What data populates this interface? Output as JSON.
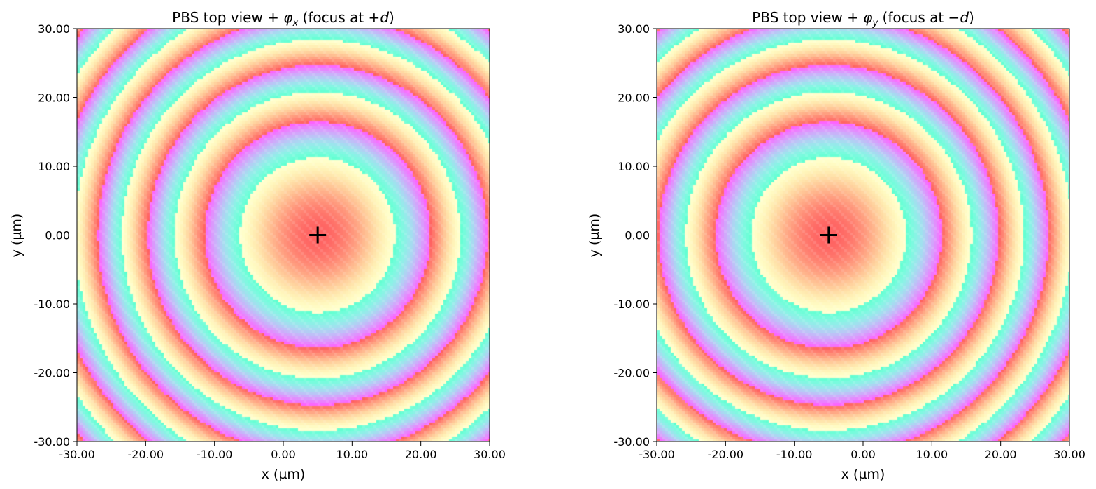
{
  "chart_data": [
    {
      "type": "heatmap",
      "title": {
        "prefix": "PBS top view + ",
        "symbol": "φ",
        "subscript": "x",
        "middle": " (focus at +",
        "var": "d",
        "suffix": ")"
      },
      "xlabel": "x (µm)",
      "ylabel": "y (µm)",
      "xlim": [
        -30,
        30
      ],
      "ylim": [
        -30,
        30
      ],
      "xticks": [
        "-30.00",
        "-20.00",
        "-10.00",
        "0.00",
        "10.00",
        "20.00",
        "30.00"
      ],
      "yticks": [
        "30.00",
        "20.00",
        "10.00",
        "0.00",
        "-10.00",
        "-20.00",
        "-30.00"
      ],
      "xtick_values": [
        -30,
        -20,
        -10,
        0,
        10,
        20,
        30
      ],
      "ytick_values": [
        30,
        20,
        10,
        0,
        -10,
        -20,
        -30
      ],
      "focus_marker": {
        "x": 5,
        "y": 0,
        "symbol": "+"
      },
      "pattern": "concentric phase rings centered on focus",
      "colormap": "rainbow",
      "grid": false
    },
    {
      "type": "heatmap",
      "title": {
        "prefix": "PBS top view + ",
        "symbol": "φ",
        "subscript": "y",
        "middle": " (focus at −",
        "var": "d",
        "suffix": ")"
      },
      "xlabel": "x (µm)",
      "ylabel": "y (µm)",
      "xlim": [
        -30,
        30
      ],
      "ylim": [
        -30,
        30
      ],
      "xticks": [
        "-30.00",
        "-20.00",
        "-10.00",
        "0.00",
        "10.00",
        "20.00",
        "30.00"
      ],
      "yticks": [
        "30.00",
        "20.00",
        "10.00",
        "0.00",
        "-10.00",
        "-20.00",
        "-30.00"
      ],
      "xtick_values": [
        -30,
        -20,
        -10,
        0,
        10,
        20,
        30
      ],
      "ytick_values": [
        30,
        20,
        10,
        0,
        -10,
        -20,
        -30
      ],
      "focus_marker": {
        "x": -5,
        "y": 0,
        "symbol": "+"
      },
      "pattern": "concentric phase rings centered on focus",
      "colormap": "rainbow",
      "grid": false
    }
  ]
}
